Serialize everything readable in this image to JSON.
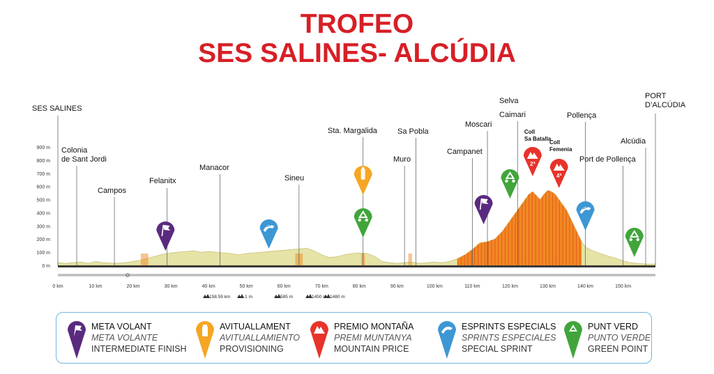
{
  "title": {
    "line1": "TROFEO",
    "line2": "SES SALINES- ALCÚDIA"
  },
  "colors": {
    "title": "#d71f26",
    "profile_fill": "#e6e3a6",
    "climb_fill": "#f08a23",
    "climb_stripes": "#e23c1e",
    "meta_volant": "#5a2a7f",
    "avituallament": "#f5a623",
    "premio_montana": "#e8332a",
    "esprints": "#3d97d3",
    "punt_verde": "#41a53b",
    "legend_border": "#6fb7e3"
  },
  "chart_data": {
    "type": "area",
    "xlabel": "",
    "ylabel": "",
    "xlim": [
      0,
      158.59
    ],
    "ylim": [
      0,
      900
    ],
    "yticks": [
      "0 m",
      "100 m",
      "200 m",
      "300 m",
      "400 m",
      "500 m",
      "600 m",
      "700 m",
      "800 m",
      "900 m"
    ],
    "xticks": [
      "0 km",
      "10 km",
      "20 km",
      "30 km",
      "40 km",
      "50 km",
      "60 km",
      "70 km",
      "80 km",
      "90 km",
      "100 km",
      "110 km",
      "120 km",
      "130 km",
      "140 km",
      "150 km"
    ],
    "profile": {
      "x": [
        0,
        2,
        4,
        6,
        8,
        10,
        12,
        15,
        18,
        20,
        22,
        24,
        26,
        28,
        30,
        32,
        34,
        36,
        38,
        40,
        42,
        44,
        46,
        48,
        50,
        52,
        54,
        56,
        58,
        60,
        62,
        64,
        66,
        68,
        70,
        72,
        74,
        76,
        78,
        80,
        82,
        84,
        86,
        88,
        90,
        92,
        94,
        96,
        98,
        100,
        102,
        104,
        106,
        108,
        110,
        112,
        114,
        116,
        118,
        119,
        120,
        121,
        122,
        123,
        124,
        125,
        126,
        127,
        128,
        129,
        130,
        131,
        132,
        133,
        134,
        135,
        136,
        137,
        138,
        139,
        140,
        142,
        144,
        146,
        148,
        150,
        152,
        154,
        156,
        158.59
      ],
      "y": [
        20,
        15,
        20,
        25,
        15,
        30,
        20,
        15,
        20,
        30,
        40,
        55,
        70,
        85,
        95,
        100,
        105,
        110,
        100,
        105,
        100,
        95,
        90,
        80,
        90,
        95,
        100,
        105,
        110,
        115,
        120,
        125,
        130,
        110,
        80,
        60,
        65,
        80,
        90,
        95,
        90,
        70,
        30,
        20,
        15,
        20,
        25,
        15,
        20,
        25,
        20,
        30,
        50,
        80,
        120,
        170,
        180,
        200,
        260,
        300,
        340,
        380,
        420,
        460,
        500,
        540,
        560,
        530,
        500,
        540,
        570,
        560,
        540,
        500,
        460,
        420,
        360,
        300,
        240,
        180,
        140,
        110,
        90,
        70,
        55,
        35,
        20,
        15,
        10,
        10
      ]
    },
    "summary": {
      "distance": "158.59 km",
      "min_alt": "-1 m",
      "climb": "585 m",
      "elev_gain": "1450 m",
      "elev_loss": "1480 m"
    },
    "places": [
      {
        "name": "SES SALINES",
        "km": 0
      },
      {
        "name": "Colonia de Sant Jordi",
        "km": 5
      },
      {
        "name": "Campos",
        "km": 15
      },
      {
        "name": "Felanitx",
        "km": 29
      },
      {
        "name": "Manacor",
        "km": 43
      },
      {
        "name": "Sineu",
        "km": 64
      },
      {
        "name": "Sta. Margalida",
        "km": 81
      },
      {
        "name": "Muro",
        "km": 92
      },
      {
        "name": "Sa Pobla",
        "km": 95
      },
      {
        "name": "Campanet",
        "km": 110
      },
      {
        "name": "Moscari",
        "km": 114
      },
      {
        "name": "Selva",
        "km": 121
      },
      {
        "name": "Caimari",
        "km": 122
      },
      {
        "name": "Coll Sa Batalla",
        "km": 126
      },
      {
        "name": "Coll Femenia",
        "km": 133
      },
      {
        "name": "Pollença",
        "km": 140
      },
      {
        "name": "Port de Pollença",
        "km": 150
      },
      {
        "name": "Alcúdia",
        "km": 156
      },
      {
        "name": "PORT D'ALCÚDIA",
        "km": 158.59
      }
    ],
    "markers": [
      {
        "type": "meta_volant",
        "km": 28
      },
      {
        "type": "esprints",
        "km": 56
      },
      {
        "type": "avituallament",
        "km": 81
      },
      {
        "type": "punt_verde",
        "km": 81
      },
      {
        "type": "meta_volant",
        "km": 113
      },
      {
        "type": "punt_verde",
        "km": 120
      },
      {
        "type": "premio_montana",
        "km": 126,
        "label": "2ª"
      },
      {
        "type": "premio_montana",
        "km": 133,
        "label": "4ª"
      },
      {
        "type": "esprints",
        "km": 140
      },
      {
        "type": "punt_verde",
        "km": 153
      }
    ]
  },
  "legend": [
    {
      "type": "meta_volant",
      "l1": "META VOLANT",
      "l2": "META VOLANTE",
      "l3": "INTERMEDIATE FINISH"
    },
    {
      "type": "avituallament",
      "l1": "AVITUALLAMENT",
      "l2": "AVITUALLAMIENTO",
      "l3": "PROVISIONING"
    },
    {
      "type": "premio_montana",
      "l1": "PREMIO MONTAÑA",
      "l2": "PREMI MUNTANYA",
      "l3": "MOUNTAIN PRICE"
    },
    {
      "type": "esprints",
      "l1": "ESPRINTS ESPECIALS",
      "l2": "SPRINTS ESPECIALES",
      "l3": "SPECIAL SPRINT"
    },
    {
      "type": "punt_verde",
      "l1": "PUNT VERD",
      "l2": "PUNTO VERDE",
      "l3": "GREEN POINT"
    }
  ]
}
